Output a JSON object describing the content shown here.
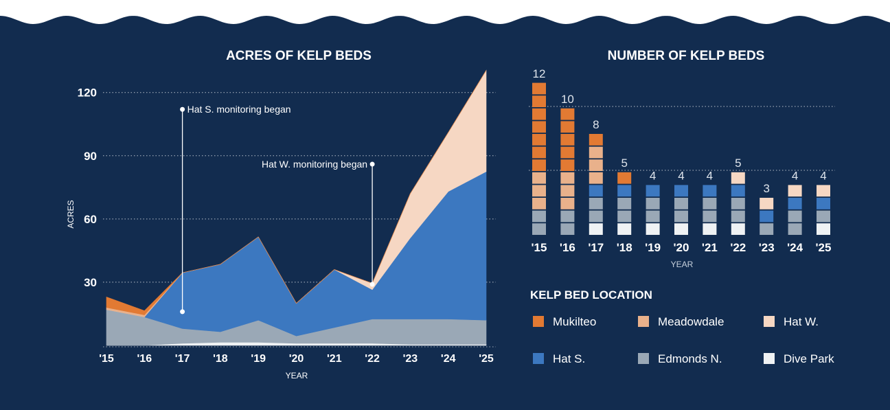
{
  "colors": {
    "background": "#122c4f",
    "mukilteo": "#e27a33",
    "meadowdale": "#e9b18b",
    "hat_w": "#f6d7c3",
    "hat_s": "#3c78c0",
    "edmonds_n": "#9aa8b6",
    "dive_park": "#eff2f4",
    "text": "#ffffff",
    "muted_text": "#c8d2de"
  },
  "chart_data": [
    {
      "type": "area",
      "stacked": true,
      "title": "ACRES OF KELP BEDS",
      "xlabel": "YEAR",
      "ylabel": "ACRES",
      "x": [
        "'15",
        "'16",
        "'17",
        "'18",
        "'19",
        "'20",
        "'21",
        "'22",
        "'23",
        "'24",
        "'25"
      ],
      "ylim": [
        0,
        130
      ],
      "yticks": [
        30,
        60,
        90,
        120
      ],
      "grid": "dotted horizontal",
      "series": [
        {
          "name": "Dive Park",
          "color_key": "dive_park",
          "values": [
            0,
            0,
            1,
            1.5,
            1.5,
            1,
            1,
            1,
            0.5,
            0.5,
            0.5
          ]
        },
        {
          "name": "Edmonds N.",
          "color_key": "edmonds_n",
          "values": [
            17,
            13.5,
            7,
            5,
            10.5,
            3.5,
            7.5,
            11.5,
            12,
            12,
            11.5
          ]
        },
        {
          "name": "Hat S.",
          "color_key": "hat_s",
          "values": [
            0,
            0,
            26.5,
            32,
            39.5,
            15.5,
            27.5,
            14,
            38.5,
            60.5,
            70.5
          ]
        },
        {
          "name": "Hat W.",
          "color_key": "hat_w",
          "values": [
            0,
            0,
            0,
            0,
            0,
            0,
            0,
            3,
            21,
            28,
            48
          ]
        },
        {
          "name": "Meadowdale",
          "color_key": "meadowdale",
          "values": [
            1,
            1,
            0,
            0,
            0,
            0,
            0,
            0,
            0,
            0,
            0
          ]
        },
        {
          "name": "Mukilteo",
          "color_key": "mukilteo",
          "values": [
            5,
            2,
            0,
            0,
            0,
            0,
            0,
            0,
            0,
            0,
            0
          ]
        }
      ],
      "annotations": [
        {
          "text": "Hat S. monitoring began",
          "x": "'17",
          "y_from": 16,
          "y_to": 112
        },
        {
          "text": "Hat W. monitoring began",
          "x": "'22",
          "y_from": 29,
          "y_to": 86
        }
      ]
    },
    {
      "type": "bar",
      "stacked": true,
      "title": "NUMBER OF KELP BEDS",
      "xlabel": "YEAR",
      "categories": [
        "'15",
        "'16",
        "'17",
        "'18",
        "'19",
        "'20",
        "'21",
        "'22",
        "'23",
        "'24",
        "'25"
      ],
      "totals": [
        12,
        10,
        8,
        5,
        4,
        4,
        4,
        5,
        3,
        4,
        4
      ],
      "ylim": [
        0,
        12
      ],
      "grid_values": [
        5,
        10
      ],
      "series": [
        {
          "name": "Dive Park",
          "color_key": "dive_park",
          "values": [
            0,
            0,
            1,
            1,
            1,
            1,
            1,
            1,
            0,
            0,
            1
          ]
        },
        {
          "name": "Edmonds N.",
          "color_key": "edmonds_n",
          "values": [
            2,
            2,
            2,
            2,
            2,
            2,
            2,
            2,
            1,
            2,
            1
          ]
        },
        {
          "name": "Hat S.",
          "color_key": "hat_s",
          "values": [
            0,
            0,
            1,
            1,
            1,
            1,
            1,
            1,
            1,
            1,
            1
          ]
        },
        {
          "name": "Hat W.",
          "color_key": "hat_w",
          "values": [
            0,
            0,
            0,
            0,
            0,
            0,
            0,
            1,
            1,
            1,
            1
          ]
        },
        {
          "name": "Meadowdale",
          "color_key": "meadowdale",
          "values": [
            3,
            3,
            3,
            0,
            0,
            0,
            0,
            0,
            0,
            0,
            0
          ]
        },
        {
          "name": "Mukilteo",
          "color_key": "mukilteo",
          "values": [
            7,
            5,
            1,
            1,
            0,
            0,
            0,
            0,
            0,
            0,
            0
          ]
        }
      ]
    }
  ],
  "legend": {
    "title": "KELP BED LOCATION",
    "items": [
      {
        "label": "Mukilteo",
        "color_key": "mukilteo"
      },
      {
        "label": "Meadowdale",
        "color_key": "meadowdale"
      },
      {
        "label": "Hat W.",
        "color_key": "hat_w"
      },
      {
        "label": "Hat S.",
        "color_key": "hat_s"
      },
      {
        "label": "Edmonds N.",
        "color_key": "edmonds_n"
      },
      {
        "label": "Dive Park",
        "color_key": "dive_park"
      }
    ]
  }
}
